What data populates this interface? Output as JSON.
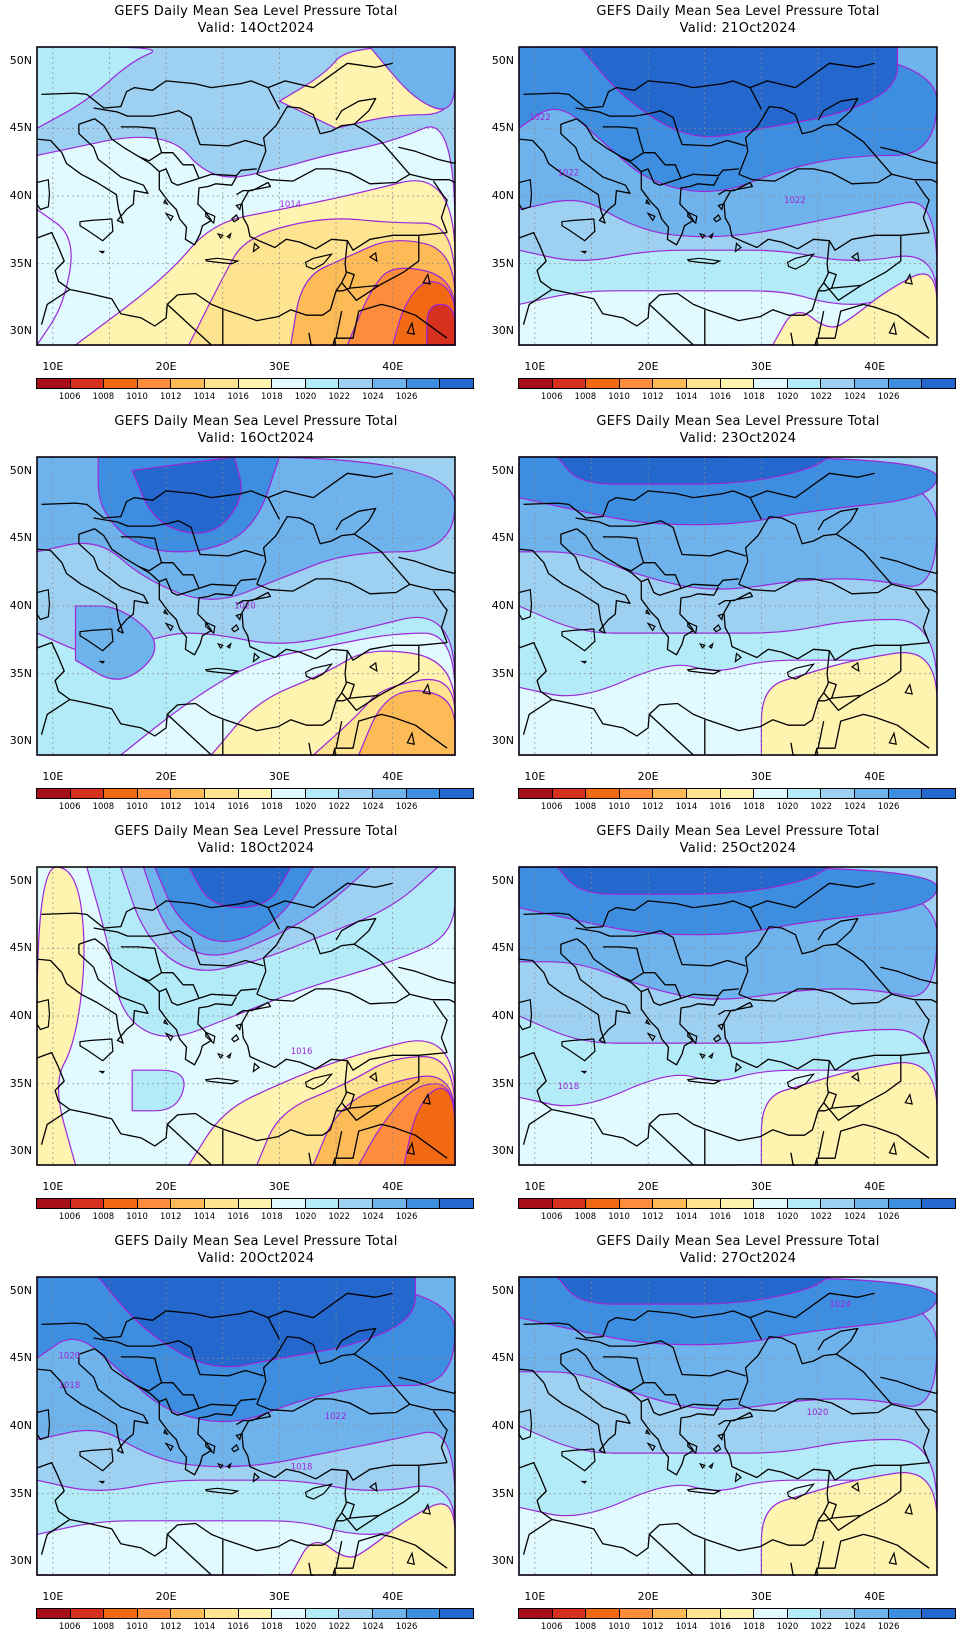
{
  "colorbar": {
    "labels": [
      "1006",
      "1008",
      "1010",
      "1012",
      "1014",
      "1016",
      "1018",
      "1020",
      "1022",
      "1024",
      "1026"
    ],
    "colors": [
      "#a50f15",
      "#d7301f",
      "#f16913",
      "#fd8d3c",
      "#fdbb57",
      "#fee391",
      "#fff3b0",
      "#e0faff",
      "#b3ecf8",
      "#9ed0f2",
      "#6fb3ec",
      "#3d8ee0",
      "#2467cd"
    ]
  },
  "axes": {
    "lat_labels": [
      "50N",
      "45N",
      "40N",
      "35N",
      "30N"
    ],
    "lon_labels": [
      "10E",
      "20E",
      "30E",
      "40E"
    ]
  },
  "panels": [
    {
      "title": "GEFS Daily Mean Sea Level Pressure Total",
      "valid": "Valid: 14Oct2024",
      "contour_labels": [
        "1014"
      ],
      "pattern": "warm-southeast"
    },
    {
      "title": "GEFS Daily Mean Sea Level Pressure Total",
      "valid": "Valid: 21Oct2024",
      "contour_labels": [
        "1022",
        "1022",
        "1022"
      ],
      "pattern": "high-north"
    },
    {
      "title": "GEFS Daily Mean Sea Level Pressure Total",
      "valid": "Valid: 16Oct2024",
      "contour_labels": [
        "1020"
      ],
      "pattern": "high-center-warm-se"
    },
    {
      "title": "GEFS Daily Mean Sea Level Pressure Total",
      "valid": "Valid: 23Oct2024",
      "contour_labels": [],
      "pattern": "high-north-mild-se"
    },
    {
      "title": "GEFS Daily Mean Sea Level Pressure Total",
      "valid": "Valid: 18Oct2024",
      "contour_labels": [
        "1016"
      ],
      "pattern": "high-center-hot-se"
    },
    {
      "title": "GEFS Daily Mean Sea Level Pressure Total",
      "valid": "Valid: 25Oct2024",
      "contour_labels": [
        "1018"
      ],
      "pattern": "high-north-mild-se"
    },
    {
      "title": "GEFS Daily Mean Sea Level Pressure Total",
      "valid": "Valid: 20Oct2024",
      "contour_labels": [
        "1020",
        "1018",
        "1022",
        "1018"
      ],
      "pattern": "high-north"
    },
    {
      "title": "GEFS Daily Mean Sea Level Pressure Total",
      "valid": "Valid: 27Oct2024",
      "contour_labels": [
        "1024",
        "1020"
      ],
      "pattern": "high-north-mild-se"
    }
  ]
}
